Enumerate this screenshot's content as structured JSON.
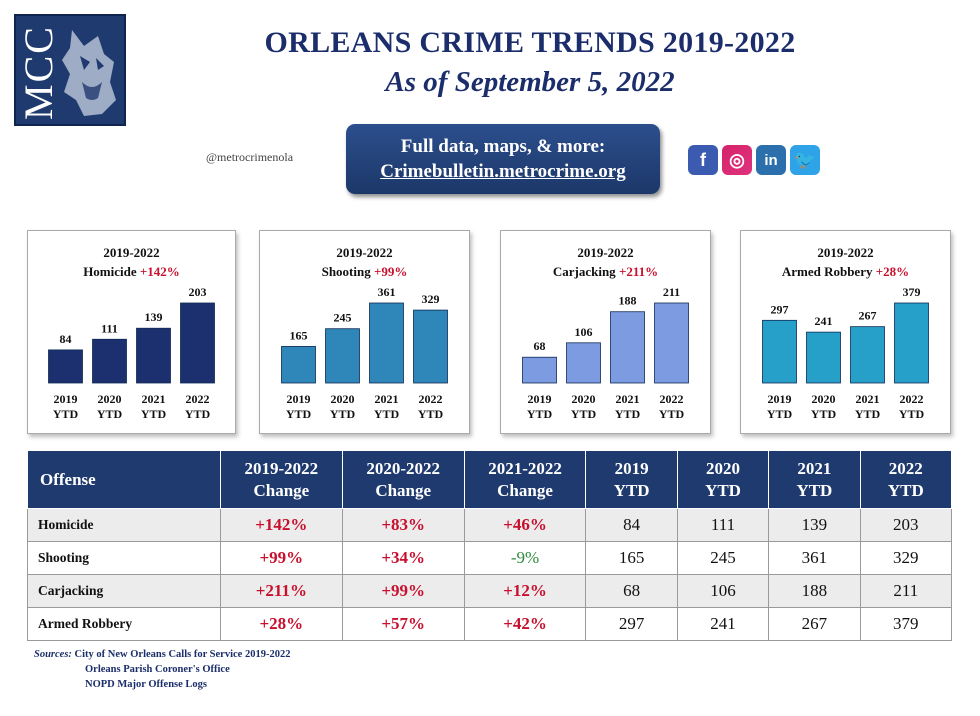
{
  "logo": {
    "text": "MCC"
  },
  "header": {
    "title": "ORLEANS CRIME TRENDS 2019-2022",
    "subtitle": "As of September 5, 2022",
    "handle": "@metrocrimenola",
    "cta_line1": "Full data, maps, & more:",
    "cta_line2": "Crimebulletin.metrocrime.org"
  },
  "social": {
    "facebook": "f",
    "instagram": "◎",
    "linkedin": "in",
    "twitter": "🐦"
  },
  "colors": {
    "navy": "#1f3a6e",
    "red": "#c8102e",
    "green": "#2e8b3c",
    "homicide": "#1c3070",
    "shooting": "#2f86b8",
    "carjacking": "#7d9be0",
    "armed_robbery": "#26a0c8"
  },
  "chart_data": [
    {
      "type": "bar",
      "range": "2019-2022",
      "offense": "Homicide",
      "change": "+142%",
      "categories": [
        "2019\nYTD",
        "2020\nYTD",
        "2021\nYTD",
        "2022\nYTD"
      ],
      "values": [
        84,
        111,
        139,
        203
      ],
      "color": "#1c3070"
    },
    {
      "type": "bar",
      "range": "2019-2022",
      "offense": "Shooting",
      "change": "+99%",
      "categories": [
        "2019\nYTD",
        "2020\nYTD",
        "2021\nYTD",
        "2022\nYTD"
      ],
      "values": [
        165,
        245,
        361,
        329
      ],
      "color": "#2f86b8"
    },
    {
      "type": "bar",
      "range": "2019-2022",
      "offense": "Carjacking",
      "change": "+211%",
      "categories": [
        "2019\nYTD",
        "2020\nYTD",
        "2021\nYTD",
        "2022\nYTD"
      ],
      "values": [
        68,
        106,
        188,
        211
      ],
      "color": "#7d9be0"
    },
    {
      "type": "bar",
      "range": "2019-2022",
      "offense": "Armed Robbery",
      "change": "+28%",
      "categories": [
        "2019\nYTD",
        "2020\nYTD",
        "2021\nYTD",
        "2022\nYTD"
      ],
      "values": [
        297,
        241,
        267,
        379
      ],
      "color": "#26a0c8"
    }
  ],
  "table": {
    "headers": [
      "Offense",
      "2019-2022\nChange",
      "2020-2022\nChange",
      "2021-2022\nChange",
      "2019\nYTD",
      "2020\nYTD",
      "2021\nYTD",
      "2022\nYTD"
    ],
    "rows": [
      {
        "offense": "Homicide",
        "c1922": "+142%",
        "c2022": "+83%",
        "c2122": "+46%",
        "y2019": "84",
        "y2020": "111",
        "y2021": "139",
        "y2022": "203"
      },
      {
        "offense": "Shooting",
        "c1922": "+99%",
        "c2022": "+34%",
        "c2122": "-9%",
        "y2019": "165",
        "y2020": "245",
        "y2021": "361",
        "y2022": "329"
      },
      {
        "offense": "Carjacking",
        "c1922": "+211%",
        "c2022": "+99%",
        "c2122": "+12%",
        "y2019": "68",
        "y2020": "106",
        "y2021": "188",
        "y2022": "211"
      },
      {
        "offense": "Armed Robbery",
        "c1922": "+28%",
        "c2022": "+57%",
        "c2122": "+42%",
        "y2019": "297",
        "y2020": "241",
        "y2021": "267",
        "y2022": "379"
      }
    ]
  },
  "sources": {
    "label": "Sources:",
    "lines": [
      "City of New Orleans Calls for Service 2019-2022",
      "Orleans Parish Coroner's Office",
      "NOPD Major Offense Logs"
    ]
  }
}
